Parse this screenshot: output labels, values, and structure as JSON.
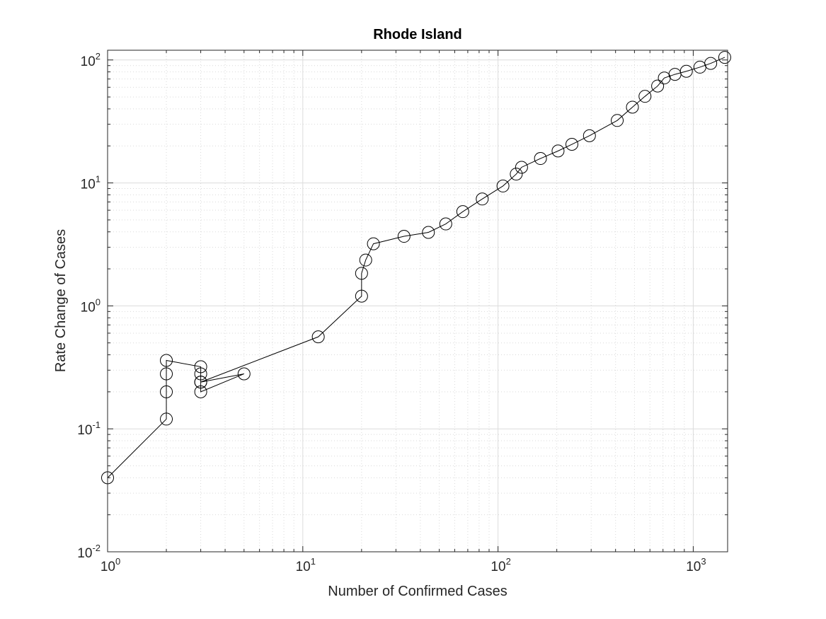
{
  "chart_data": {
    "type": "line",
    "title": "Rhode Island",
    "xlabel": "Number of Confirmed Cases",
    "ylabel": "Rate Change of Cases",
    "xscale": "log",
    "yscale": "log",
    "xlim": [
      1,
      1500
    ],
    "ylim": [
      0.01,
      120
    ],
    "grid": true,
    "minor_grid": true,
    "line_color": "#000000",
    "marker": "open-circle",
    "x_ticks": [
      {
        "base": "10",
        "exp": "0"
      },
      {
        "base": "10",
        "exp": "1"
      },
      {
        "base": "10",
        "exp": "2"
      },
      {
        "base": "10",
        "exp": "3"
      }
    ],
    "y_ticks": [
      {
        "base": "10",
        "exp": "-2"
      },
      {
        "base": "10",
        "exp": "-1"
      },
      {
        "base": "10",
        "exp": "0"
      },
      {
        "base": "10",
        "exp": "1"
      },
      {
        "base": "10",
        "exp": "2"
      }
    ],
    "series": [
      {
        "x": [
          1,
          2,
          2,
          2,
          2,
          3,
          3,
          3,
          3,
          5,
          3,
          12,
          20,
          20,
          21,
          23,
          33,
          44,
          54,
          66,
          83,
          106,
          124,
          132,
          165,
          203,
          239,
          294,
          408,
          488,
          566,
          657,
          711,
          806,
          922,
          1082,
          1229,
          1450
        ],
        "y": [
          0.04,
          0.12,
          0.2,
          0.28,
          0.36,
          0.32,
          0.28,
          0.24,
          0.2,
          0.28,
          0.24,
          0.56,
          1.2,
          1.84,
          2.36,
          3.2,
          3.68,
          3.96,
          4.64,
          5.84,
          7.4,
          9.44,
          11.8,
          13.4,
          15.8,
          18.2,
          20.6,
          24.2,
          32.2,
          41.3,
          50.6,
          61.4,
          71.4,
          76.4,
          80.9,
          87.4,
          93.8,
          105
        ]
      }
    ]
  }
}
